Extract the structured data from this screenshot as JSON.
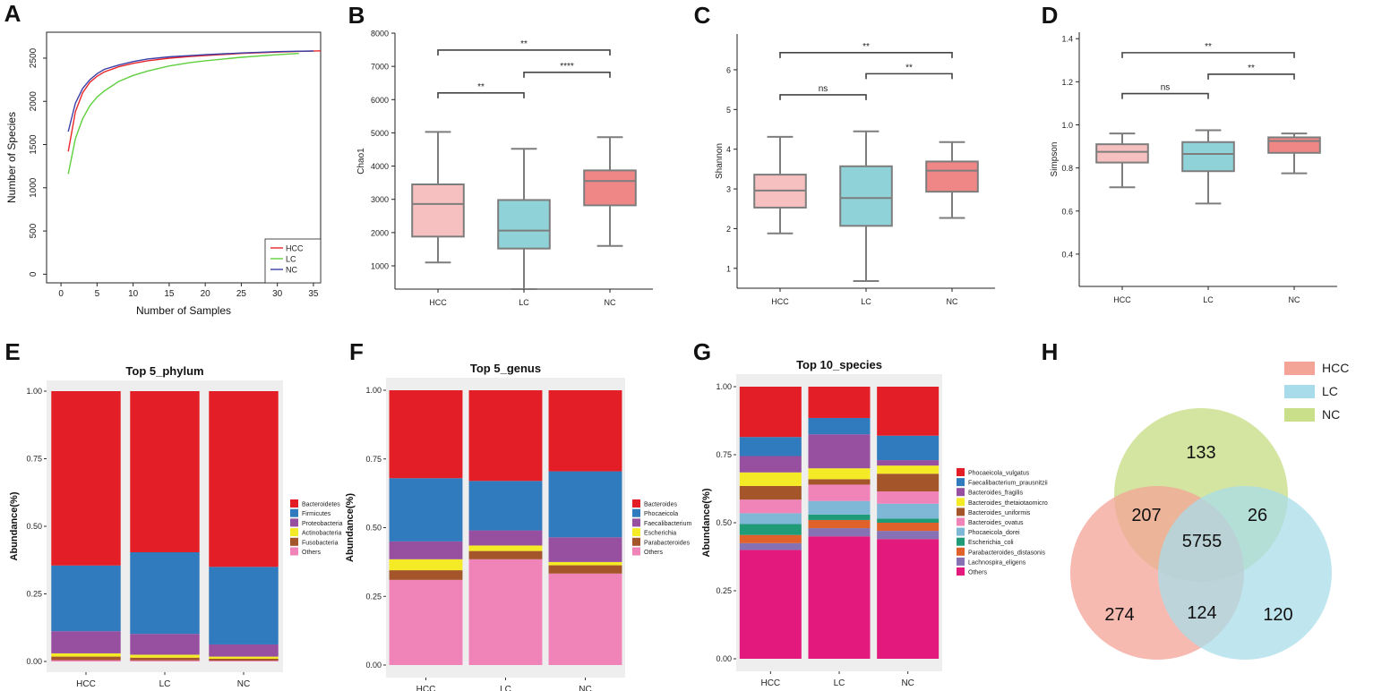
{
  "chart_data": [
    {
      "id": "A",
      "panel": "A",
      "type": "line",
      "xlabel": "Number of Samples",
      "ylabel": "Number of Species",
      "xlim": [
        -2,
        36
      ],
      "ylim": [
        -100,
        2800
      ],
      "xticks": [
        0,
        5,
        10,
        15,
        20,
        25,
        30,
        35
      ],
      "yticks": [
        0,
        500,
        1000,
        1500,
        2000,
        2500
      ],
      "legend": [
        "HCC",
        "LC",
        "NC"
      ],
      "colors": [
        "#e8262a",
        "#5fcf3f",
        "#3b3fa8"
      ],
      "series": [
        {
          "name": "HCC",
          "x": [
            1,
            2,
            3,
            4,
            5,
            6,
            8,
            10,
            12,
            15,
            18,
            20,
            25,
            30,
            33,
            36
          ],
          "y": [
            1420,
            1880,
            2100,
            2220,
            2290,
            2340,
            2400,
            2440,
            2470,
            2500,
            2520,
            2530,
            2555,
            2570,
            2578,
            2585
          ]
        },
        {
          "name": "LC",
          "x": [
            1,
            2,
            3,
            4,
            5,
            6,
            8,
            10,
            12,
            15,
            18,
            20,
            25,
            30,
            33
          ],
          "y": [
            1160,
            1570,
            1800,
            1950,
            2050,
            2120,
            2230,
            2300,
            2350,
            2410,
            2450,
            2470,
            2510,
            2540,
            2555
          ]
        },
        {
          "name": "NC",
          "x": [
            1,
            2,
            3,
            4,
            5,
            6,
            8,
            10,
            12,
            15,
            18,
            20,
            25,
            30,
            33,
            35
          ],
          "y": [
            1650,
            1980,
            2150,
            2250,
            2320,
            2370,
            2420,
            2460,
            2490,
            2515,
            2530,
            2540,
            2560,
            2575,
            2580,
            2582
          ]
        }
      ]
    },
    {
      "id": "B",
      "panel": "B",
      "type": "box",
      "ylabel": "Chao1",
      "categories": [
        "HCC",
        "LC",
        "NC"
      ],
      "ylim": [
        300,
        8000
      ],
      "yticks": [
        1000,
        2000,
        3000,
        4000,
        5000,
        6000,
        7000,
        8000
      ],
      "boxes": [
        {
          "min": 1100,
          "q1": 1880,
          "median": 2860,
          "q3": 3450,
          "max": 5030
        },
        {
          "min": 300,
          "q1": 1520,
          "median": 2060,
          "q3": 2980,
          "max": 4520
        },
        {
          "min": 1600,
          "q1": 2820,
          "median": 3550,
          "q3": 3870,
          "max": 4870
        }
      ],
      "colors": [
        "#f5c0bf",
        "#8fd3d8",
        "#ef8786"
      ],
      "brackets": [
        {
          "from": 0,
          "to": 1,
          "y": 6200,
          "label": "**"
        },
        {
          "from": 1,
          "to": 2,
          "y": 6820,
          "label": "****"
        },
        {
          "from": 0,
          "to": 2,
          "y": 7490,
          "label": "**"
        }
      ]
    },
    {
      "id": "C",
      "panel": "C",
      "type": "box",
      "ylabel": "Shannon",
      "categories": [
        "HCC",
        "LC",
        "NC"
      ],
      "ylim": [
        0.5,
        6.9
      ],
      "yticks": [
        1,
        2,
        3,
        4,
        5,
        6
      ],
      "boxes": [
        {
          "min": 1.88,
          "q1": 2.53,
          "median": 2.96,
          "q3": 3.36,
          "max": 4.31
        },
        {
          "min": 0.68,
          "q1": 2.07,
          "median": 2.77,
          "q3": 3.57,
          "max": 4.45
        },
        {
          "min": 2.27,
          "q1": 2.93,
          "median": 3.46,
          "q3": 3.69,
          "max": 4.18
        }
      ],
      "colors": [
        "#f5c0bf",
        "#8fd3d8",
        "#ef8786"
      ],
      "brackets": [
        {
          "from": 0,
          "to": 1,
          "y": 5.37,
          "label": "ns"
        },
        {
          "from": 1,
          "to": 2,
          "y": 5.9,
          "label": "**"
        },
        {
          "from": 0,
          "to": 2,
          "y": 6.43,
          "label": "**"
        }
      ]
    },
    {
      "id": "D",
      "panel": "D",
      "type": "box",
      "ylabel": "Simpson",
      "categories": [
        "HCC",
        "LC",
        "NC"
      ],
      "ylim": [
        0.25,
        1.43
      ],
      "yticks": [
        0.4,
        0.6,
        0.8,
        1.0,
        1.2,
        1.4
      ],
      "boxes": [
        {
          "min": 0.71,
          "q1": 0.825,
          "median": 0.875,
          "q3": 0.91,
          "max": 0.96
        },
        {
          "min": 0.635,
          "q1": 0.785,
          "median": 0.865,
          "q3": 0.92,
          "max": 0.975
        },
        {
          "min": 0.775,
          "q1": 0.87,
          "median": 0.925,
          "q3": 0.942,
          "max": 0.96
        }
      ],
      "colors": [
        "#f5c0bf",
        "#8fd3d8",
        "#ef8786"
      ],
      "brackets": [
        {
          "from": 0,
          "to": 1,
          "y": 1.145,
          "label": "ns"
        },
        {
          "from": 1,
          "to": 2,
          "y": 1.235,
          "label": "**"
        },
        {
          "from": 0,
          "to": 2,
          "y": 1.335,
          "label": "**"
        }
      ]
    },
    {
      "id": "E",
      "panel": "E",
      "type": "bar",
      "title": "Top 5_phylum",
      "ylabel": "Abundance(%)",
      "categories": [
        "HCC",
        "LC",
        "NC"
      ],
      "ylim": [
        0,
        1
      ],
      "yticks": [
        "0.00",
        "0.25",
        "0.50",
        "0.75",
        "1.00"
      ],
      "legend": [
        "Bacteroidetes",
        "Firmicutes",
        "Proteobacteria",
        "Actinobacteria",
        "Fusobacteria",
        "Others"
      ],
      "series": [
        {
          "name": "Others",
          "values": [
            0.005,
            0.004,
            0.003
          ]
        },
        {
          "name": "Fusobacteria",
          "values": [
            0.013,
            0.01,
            0.007
          ]
        },
        {
          "name": "Actinobacteria",
          "values": [
            0.012,
            0.011,
            0.008
          ]
        },
        {
          "name": "Proteobacteria",
          "values": [
            0.082,
            0.077,
            0.045
          ]
        },
        {
          "name": "Firmicutes",
          "values": [
            0.243,
            0.302,
            0.287
          ]
        },
        {
          "name": "Bacteroidetes",
          "values": [
            0.645,
            0.596,
            0.65
          ]
        }
      ],
      "colors": {
        "Bacteroidetes": "#e41e26",
        "Firmicutes": "#2f7bbd",
        "Proteobacteria": "#974fa0",
        "Actinobacteria": "#f4ea26",
        "Fusobacteria": "#a4552a",
        "Others": "#f083b8"
      }
    },
    {
      "id": "F",
      "panel": "F",
      "type": "bar",
      "title": "Top 5_genus",
      "ylabel": "Abundance(%)",
      "categories": [
        "HCC",
        "LC",
        "NC"
      ],
      "ylim": [
        0,
        1
      ],
      "yticks": [
        "0.00",
        "0.25",
        "0.50",
        "0.75",
        "1.00"
      ],
      "legend": [
        "Bacteroides",
        "Phocaeicola",
        "Faecalibacterium",
        "Escherichia",
        "Parabacteroides",
        "Others"
      ],
      "series": [
        {
          "name": "Others",
          "values": [
            0.31,
            0.385,
            0.333
          ]
        },
        {
          "name": "Parabacteroides",
          "values": [
            0.035,
            0.03,
            0.03
          ]
        },
        {
          "name": "Escherichia",
          "values": [
            0.04,
            0.02,
            0.012
          ]
        },
        {
          "name": "Faecalibacterium",
          "values": [
            0.065,
            0.055,
            0.09
          ]
        },
        {
          "name": "Phocaeicola",
          "values": [
            0.23,
            0.18,
            0.24
          ]
        },
        {
          "name": "Bacteroides",
          "values": [
            0.32,
            0.33,
            0.295
          ]
        }
      ],
      "colors": {
        "Bacteroides": "#e41e26",
        "Phocaeicola": "#2f7bbd",
        "Faecalibacterium": "#974fa0",
        "Escherichia": "#f4ea26",
        "Parabacteroides": "#a4552a",
        "Others": "#f083b8"
      }
    },
    {
      "id": "G",
      "panel": "G",
      "type": "bar",
      "title": "Top 10_species",
      "ylabel": "Abundance(%)",
      "categories": [
        "HCC",
        "LC",
        "NC"
      ],
      "ylim": [
        0,
        1
      ],
      "yticks": [
        "0.00",
        "0.25",
        "0.50",
        "0.75",
        "1.00"
      ],
      "legend": [
        "Phocaeicola_vulgatus",
        "Faecalibacterium_prausnitzii",
        "Bacteroides_fragilis",
        "Bacteroides_thetaiotaomicro",
        "Bacteroides_uniformis",
        "Bacteroides_ovatus",
        "Phocaeicola_dorei",
        "Escherichia_coli",
        "Parabacteroides_distasonis",
        "Lachnospira_eligens",
        "Others"
      ],
      "series": [
        {
          "name": "Others",
          "values": [
            0.4,
            0.45,
            0.44
          ]
        },
        {
          "name": "Lachnospira_eligens",
          "values": [
            0.025,
            0.03,
            0.03
          ]
        },
        {
          "name": "Parabacteroides_distasonis",
          "values": [
            0.03,
            0.03,
            0.03
          ]
        },
        {
          "name": "Escherichia_coli",
          "values": [
            0.04,
            0.02,
            0.015
          ]
        },
        {
          "name": "Phocaeicola_dorei",
          "values": [
            0.04,
            0.05,
            0.055
          ]
        },
        {
          "name": "Bacteroides_ovatus",
          "values": [
            0.05,
            0.06,
            0.045
          ]
        },
        {
          "name": "Bacteroides_uniformis",
          "values": [
            0.05,
            0.02,
            0.065
          ]
        },
        {
          "name": "Bacteroides_thetaiotaomicro",
          "values": [
            0.05,
            0.04,
            0.03
          ]
        },
        {
          "name": "Bacteroides_fragilis",
          "values": [
            0.06,
            0.125,
            0.02
          ]
        },
        {
          "name": "Faecalibacterium_prausnitzii",
          "values": [
            0.07,
            0.06,
            0.09
          ]
        },
        {
          "name": "Phocaeicola_vulgatus",
          "values": [
            0.185,
            0.115,
            0.18
          ]
        }
      ],
      "colors": {
        "Phocaeicola_vulgatus": "#e41e26",
        "Faecalibacterium_prausnitzii": "#2f7bbd",
        "Bacteroides_fragilis": "#974fa0",
        "Bacteroides_thetaiotaomicro": "#f4ea26",
        "Bacteroides_uniformis": "#a4552a",
        "Bacteroides_ovatus": "#f083b8",
        "Phocaeicola_dorei": "#7fb7d6",
        "Escherichia_coli": "#1f9b77",
        "Parabacteroides_distasonis": "#e0612a",
        "Lachnospira_eligens": "#8571b3",
        "Others": "#e3197d"
      }
    },
    {
      "id": "H",
      "panel": "H",
      "type": "venn",
      "sets": [
        "HCC",
        "LC",
        "NC"
      ],
      "colors": {
        "HCC": "#f4a397",
        "LC": "#a9dcea",
        "NC": "#c9df8a"
      },
      "regions": {
        "NC_only": 133,
        "HCC_NC": 207,
        "LC_NC": 26,
        "all": 5755,
        "HCC_only": 274,
        "HCC_LC": 124,
        "LC_only": 120
      }
    }
  ]
}
